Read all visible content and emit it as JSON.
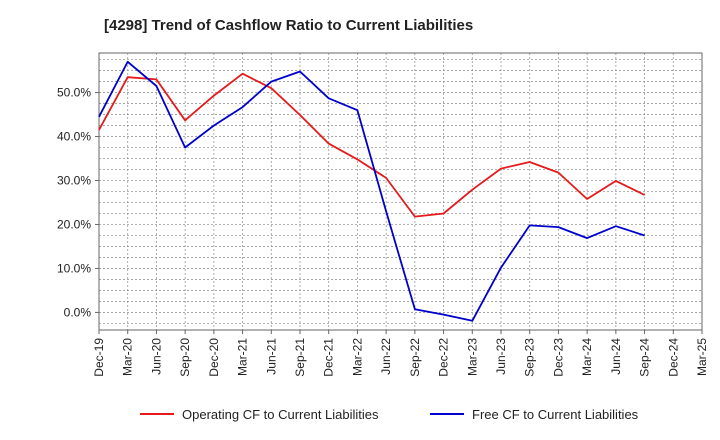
{
  "chart_data": {
    "type": "line",
    "title": "[4298]  Trend of Cashflow Ratio to Current Liabilities",
    "xlabel": "",
    "ylabel": "",
    "x": [
      "Dec-19",
      "Mar-20",
      "Jun-20",
      "Sep-20",
      "Dec-20",
      "Mar-21",
      "Jun-21",
      "Sep-21",
      "Dec-21",
      "Mar-22",
      "Jun-22",
      "Sep-22",
      "Dec-22",
      "Mar-23",
      "Jun-23",
      "Sep-23",
      "Dec-23",
      "Mar-24",
      "Jun-24",
      "Sep-24",
      "Dec-24",
      "Mar-25"
    ],
    "y_ticks": [
      "0.0%",
      "10.0%",
      "20.0%",
      "30.0%",
      "40.0%",
      "50.0%"
    ],
    "ylim": [
      -4,
      59
    ],
    "grid": true,
    "legend_position": "bottom",
    "series": [
      {
        "name": "Operating CF to Current Liabilities",
        "color": "#e41a1c",
        "values": [
          41.5,
          53.5,
          53.0,
          43.7,
          49.3,
          54.3,
          51.0,
          44.9,
          38.4,
          34.8,
          30.6,
          21.8,
          22.5,
          27.9,
          32.7,
          34.2,
          31.8,
          25.8,
          29.9,
          26.7,
          null,
          null
        ]
      },
      {
        "name": "Free CF to Current Liabilities",
        "color": "#0000cc",
        "values": [
          44.5,
          57.0,
          51.5,
          37.5,
          42.5,
          46.7,
          52.5,
          54.8,
          48.7,
          46.0,
          23.0,
          0.7,
          -0.5,
          -1.9,
          10.2,
          19.8,
          19.4,
          16.9,
          19.6,
          17.5,
          null,
          null
        ]
      }
    ]
  }
}
